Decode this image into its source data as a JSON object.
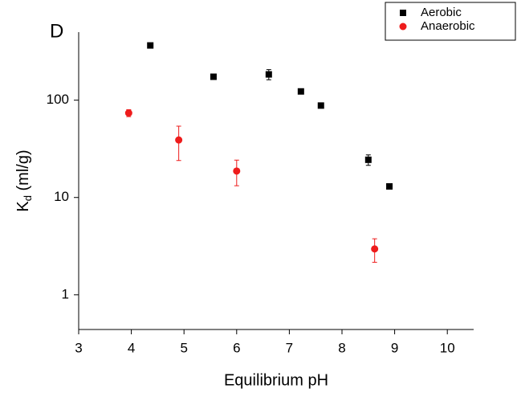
{
  "chart_data": {
    "type": "scatter",
    "annotation": "D",
    "x_label": "Equilibrium pH",
    "y_label": [
      "K",
      "d",
      " (ml/g)"
    ],
    "xlim": [
      3,
      10.5
    ],
    "xticks": [
      3,
      4,
      5,
      6,
      7,
      8,
      9,
      10
    ],
    "ylim": [
      0.44,
      500
    ],
    "yticks": [
      1,
      10,
      100
    ],
    "log_y": true,
    "legend": "top-right",
    "series": [
      {
        "name": "Aerobic",
        "color": "#000000",
        "marker": "square",
        "x": [
          4.36,
          5.56,
          6.61,
          7.22,
          7.6,
          8.5,
          8.9
        ],
        "values": [
          365,
          174,
          184,
          123,
          88,
          24.4,
          13
        ],
        "errors": [
          null,
          null,
          22,
          null,
          null,
          3,
          null
        ]
      },
      {
        "name": "Anaerobic",
        "color": "#ee1c1c",
        "marker": "circle",
        "x": [
          3.95,
          4.9,
          6.0,
          8.62
        ],
        "values": [
          73.8,
          39,
          18.7,
          2.96
        ],
        "errors": [
          6,
          15,
          5.5,
          0.8
        ]
      }
    ]
  }
}
